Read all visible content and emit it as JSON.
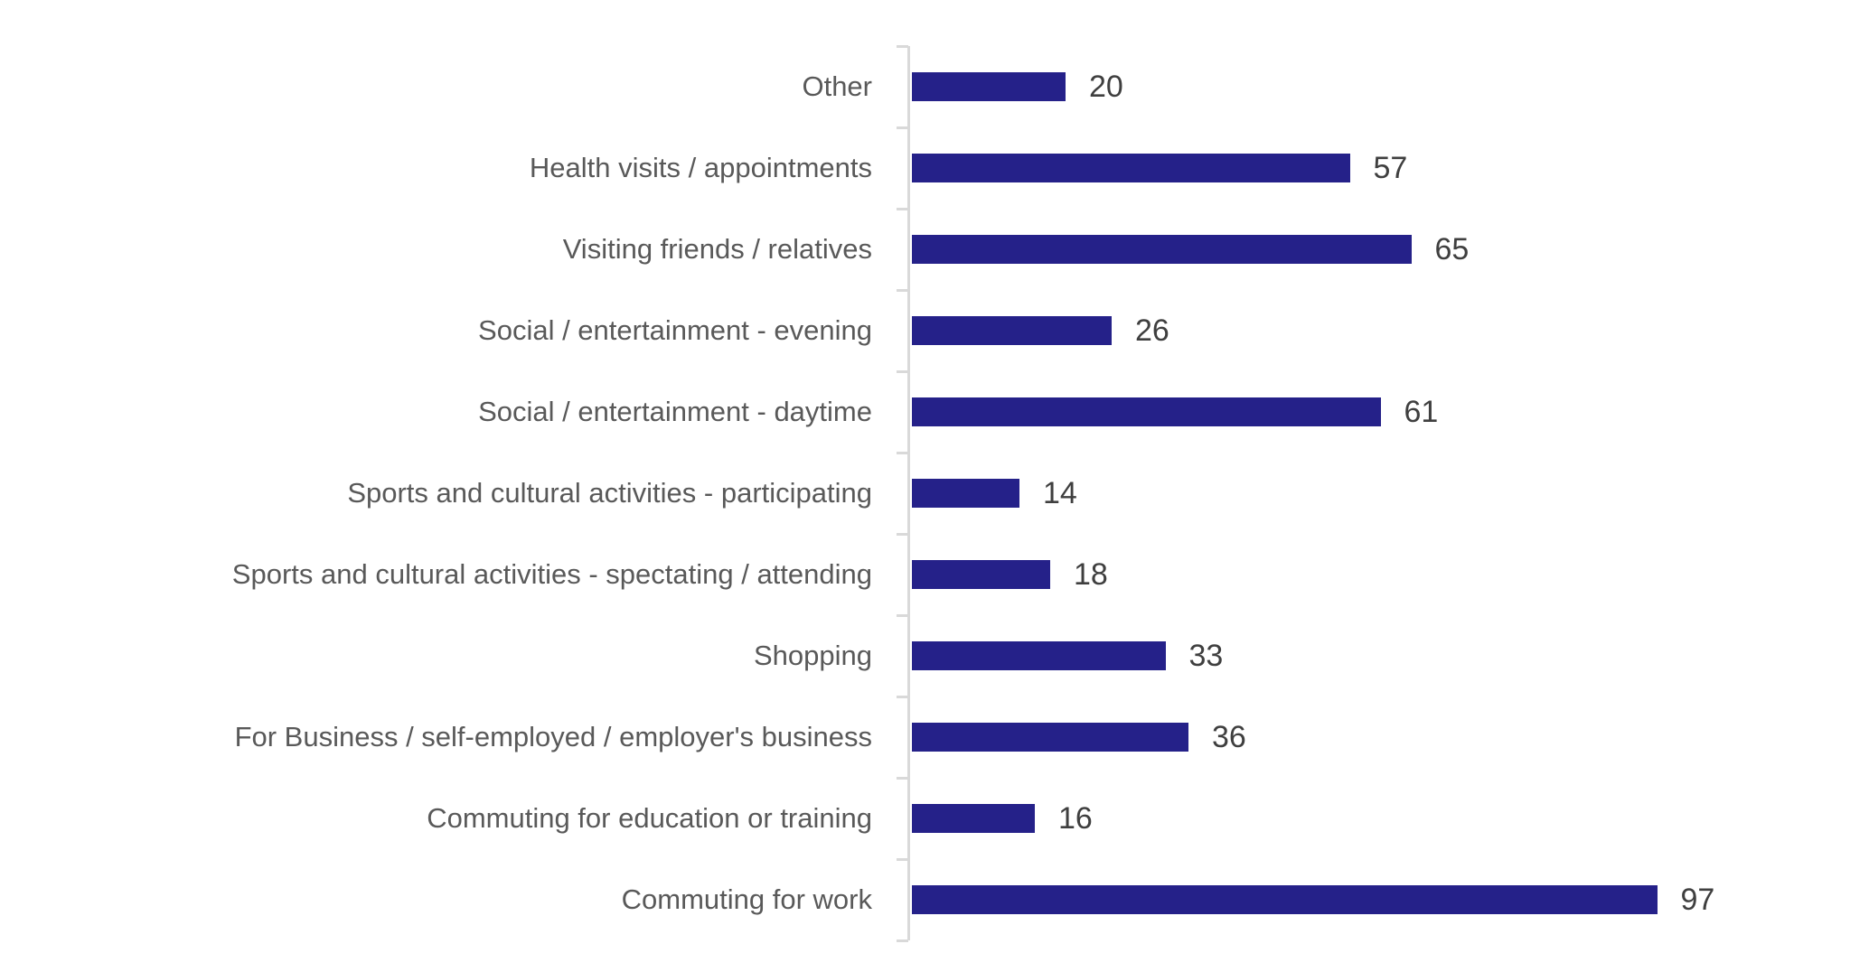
{
  "chart_data": {
    "type": "bar",
    "orientation": "horizontal",
    "title": "",
    "xlabel": "",
    "ylabel": "",
    "xlim": [
      0,
      100
    ],
    "grid": false,
    "legend": false,
    "value_labels_shown": true,
    "categories": [
      "Other",
      "Health visits / appointments",
      "Visiting friends / relatives",
      "Social / entertainment - evening",
      "Social / entertainment - daytime",
      "Sports and cultural activities - participating",
      "Sports and cultural activities - spectating / attending",
      "Shopping",
      "For Business / self-employed / employer's business",
      "Commuting for education or training",
      "Commuting for work"
    ],
    "values": [
      20,
      57,
      65,
      26,
      61,
      14,
      18,
      33,
      36,
      16,
      97
    ],
    "colors": {
      "bar": "#252189",
      "axis": "#D9D9D9",
      "category_label": "#595959",
      "value_label": "#3F3F3F"
    }
  }
}
